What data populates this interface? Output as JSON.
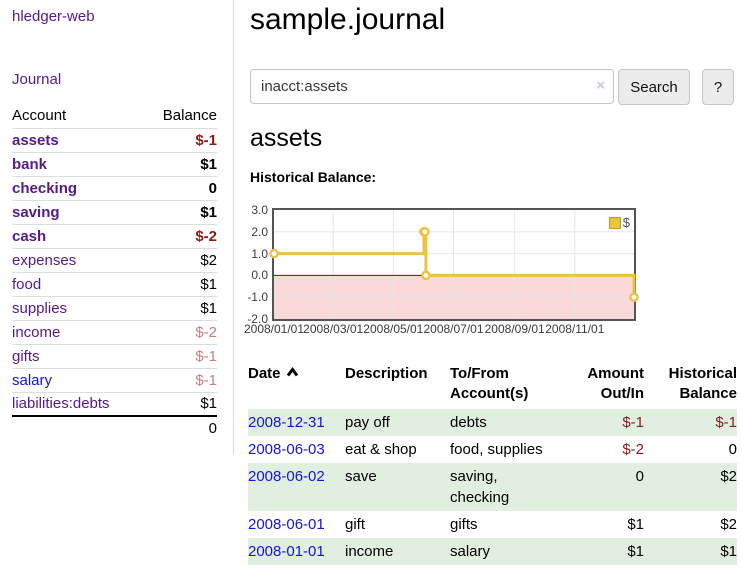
{
  "app": {
    "brand": "hledger-web",
    "nav": {
      "journal": "Journal"
    }
  },
  "colors": {
    "link_purple": "#551a8b",
    "link_blue": "#1414dd",
    "negative_strong": "#8b1a1a",
    "negative_muted": "#c5807b",
    "row_stripe_green": "#e1efe1",
    "chart_gold": "#edc240",
    "chart_negative_region_pink": "#fad9d9",
    "zero_line_red": "#8b0000"
  },
  "sidebar": {
    "headers": {
      "account": "Account",
      "balance": "Balance"
    },
    "accounts": [
      {
        "name": "assets",
        "depth": 1,
        "balance": "$-1",
        "bold": true,
        "neg": "strong"
      },
      {
        "name": "bank",
        "depth": 2,
        "balance": "$1",
        "bold": true,
        "neg": "none"
      },
      {
        "name": "checking",
        "depth": 3,
        "balance": "0",
        "bold": true,
        "neg": "none"
      },
      {
        "name": "saving",
        "depth": 3,
        "balance": "$1",
        "bold": true,
        "neg": "none"
      },
      {
        "name": "cash",
        "depth": 2,
        "balance": "$-2",
        "bold": true,
        "neg": "strong"
      },
      {
        "name": "expenses",
        "depth": 1,
        "balance": "$2",
        "bold": false,
        "neg": "none"
      },
      {
        "name": "food",
        "depth": 2,
        "balance": "$1",
        "bold": false,
        "neg": "none"
      },
      {
        "name": "supplies",
        "depth": 2,
        "balance": "$1",
        "bold": false,
        "neg": "none"
      },
      {
        "name": "income",
        "depth": 1,
        "balance": "$-2",
        "bold": false,
        "neg": "muted"
      },
      {
        "name": "gifts",
        "depth": 2,
        "balance": "$-1",
        "bold": false,
        "neg": "muted"
      },
      {
        "name": "salary",
        "depth": 2,
        "balance": "$-1",
        "bold": false,
        "neg": "muted",
        "blue": true
      },
      {
        "name": "liabilities:debts",
        "depth": 1,
        "balance": "$1",
        "bold": false,
        "neg": "none"
      }
    ],
    "total": "0"
  },
  "header": {
    "title": "sample.journal"
  },
  "search": {
    "value": "inacct:assets",
    "clear_icon": "×",
    "search_button": "Search",
    "help_button": "?"
  },
  "account_page": {
    "heading": "assets",
    "chart_title": "Historical Balance:"
  },
  "chart_data": {
    "type": "line",
    "style": "step",
    "title": "Historical Balance",
    "series": [
      {
        "name": "$",
        "color": "#edc240",
        "points": [
          [
            "2008-01-01",
            1
          ],
          [
            "2008-06-01",
            2
          ],
          [
            "2008-06-02",
            2
          ],
          [
            "2008-06-03",
            0
          ],
          [
            "2008-12-31",
            -1
          ]
        ]
      }
    ],
    "ylim": [
      -2,
      3
    ],
    "y_ticks": [
      "3.0",
      "2.0",
      "1.0",
      "0.0",
      "-1.0",
      "-2.0"
    ],
    "x_ticks": [
      "2008/01/01",
      "2008/03/01",
      "2008/05/01",
      "2008/07/01",
      "2008/09/01",
      "2008/11/01"
    ],
    "grid": true,
    "legend": {
      "label": "$",
      "position": "top-right"
    },
    "negative_region_shaded": true
  },
  "register": {
    "headers": {
      "date": "Date",
      "description": "Description",
      "accounts_line1": "To/From",
      "accounts_line2": "Account(s)",
      "amount_line1": "Amount",
      "amount_line2": "Out/In",
      "balance_line1": "Historical",
      "balance_line2": "Balance"
    },
    "rows": [
      {
        "date": "2008-12-31",
        "description": "pay off",
        "accounts": "debts",
        "amount": "$-1",
        "balance": "$-1",
        "amount_neg": true,
        "balance_neg": true,
        "shaded": true
      },
      {
        "date": "2008-06-03",
        "description": "eat & shop",
        "accounts": "food, supplies",
        "amount": "$-2",
        "balance": "0",
        "amount_neg": true,
        "balance_neg": false,
        "shaded": false
      },
      {
        "date": "2008-06-02",
        "description": "save",
        "accounts": "saving, checking",
        "amount": "0",
        "balance": "$2",
        "amount_neg": false,
        "balance_neg": false,
        "shaded": true
      },
      {
        "date": "2008-06-01",
        "description": "gift",
        "accounts": "gifts",
        "amount": "$1",
        "balance": "$2",
        "amount_neg": false,
        "balance_neg": false,
        "shaded": false
      },
      {
        "date": "2008-01-01",
        "description": "income",
        "accounts": "salary",
        "amount": "$1",
        "balance": "$1",
        "amount_neg": false,
        "balance_neg": false,
        "shaded": true
      }
    ]
  }
}
